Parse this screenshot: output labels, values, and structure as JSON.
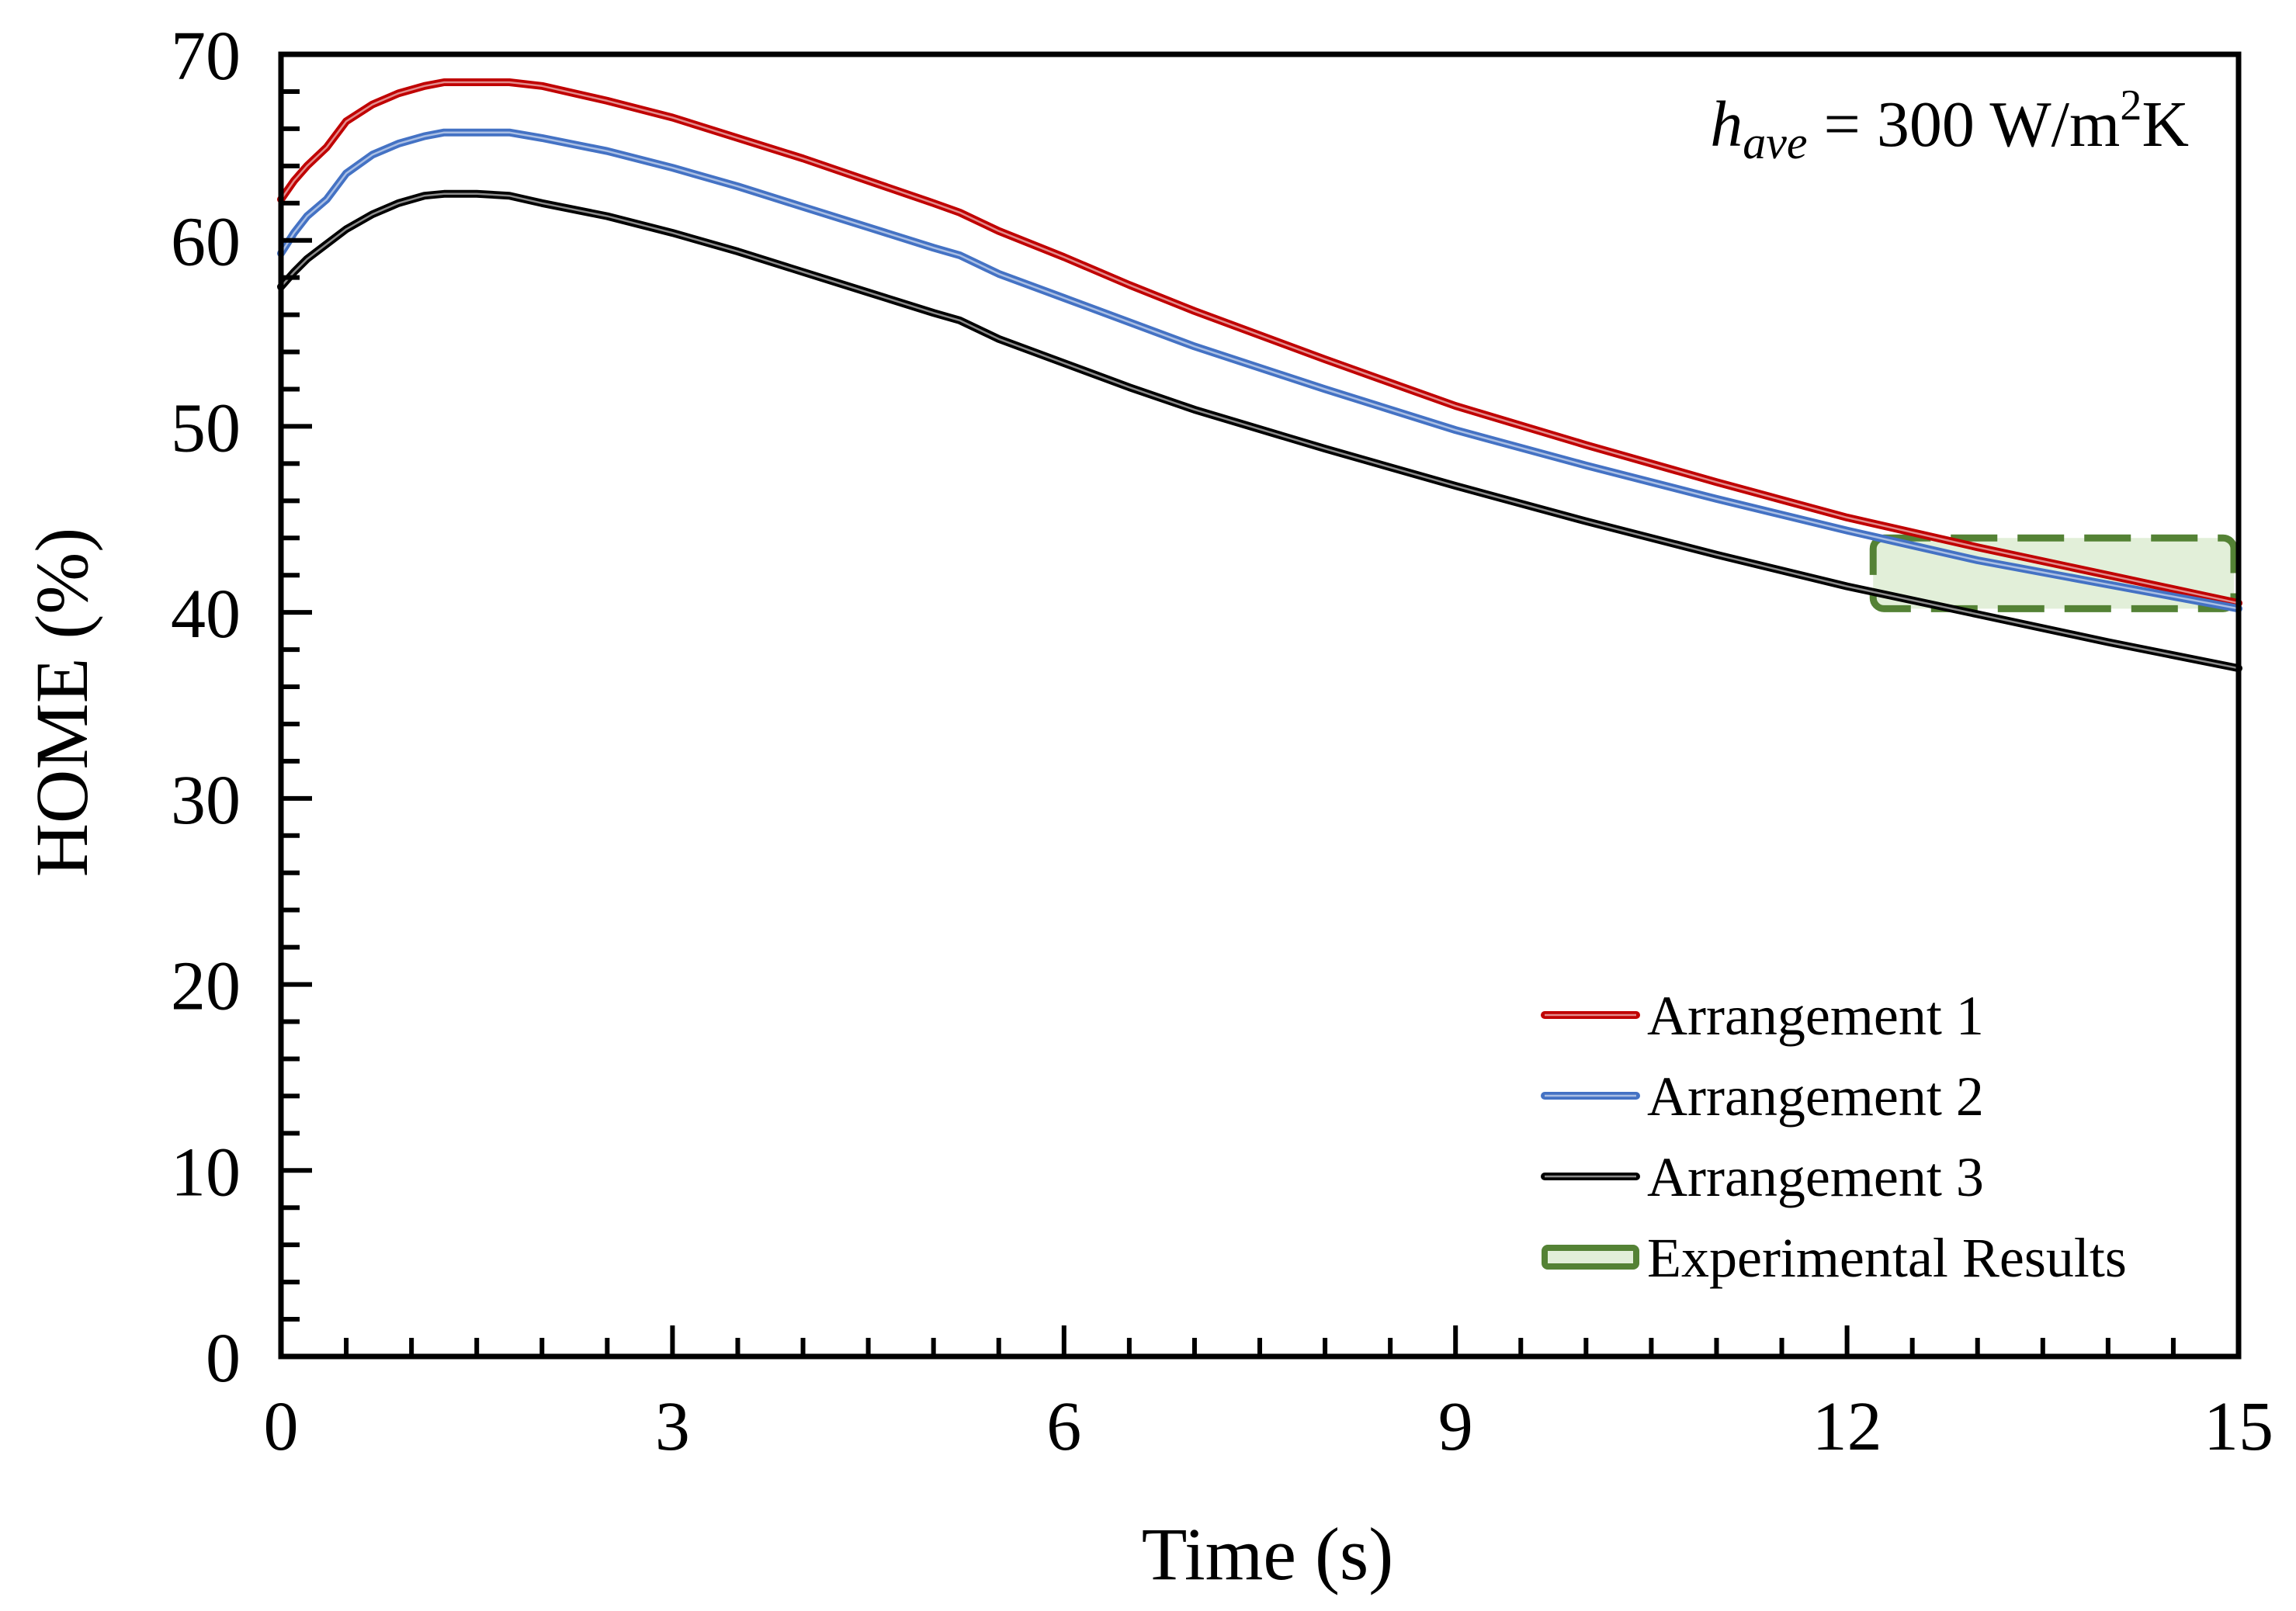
{
  "chart_data": {
    "type": "line",
    "title": "",
    "xlabel": "Time (s)",
    "ylabel": "HOME (%)",
    "xlim": [
      0,
      15
    ],
    "ylim": [
      0,
      70
    ],
    "x_ticks": [
      0,
      3,
      6,
      9,
      12,
      15
    ],
    "y_ticks": [
      0,
      10,
      20,
      30,
      40,
      50,
      60,
      70
    ],
    "x_minor_step": 0.5,
    "y_minor_step": 2,
    "grid": false,
    "legend_position": "bottom-right",
    "annotation": {
      "symbol": "h",
      "subscript": "ave",
      "text": " = 300 W/m",
      "superscript": "2",
      "suffix": "K"
    },
    "series": [
      {
        "name": "Arrangement 1",
        "color": "#c00000",
        "x": [
          0,
          0.1,
          0.2,
          0.35,
          0.5,
          0.7,
          0.9,
          1.1,
          1.25,
          1.5,
          1.75,
          2,
          2.5,
          3,
          3.5,
          4,
          4.5,
          5,
          5.2,
          5.5,
          6,
          6.5,
          7,
          8,
          9,
          10,
          11,
          12,
          13,
          14,
          15
        ],
        "values": [
          62.2,
          63.2,
          64.0,
          65.0,
          66.4,
          67.3,
          67.9,
          68.3,
          68.5,
          68.5,
          68.5,
          68.3,
          67.5,
          66.6,
          65.5,
          64.4,
          63.2,
          62.0,
          61.5,
          60.5,
          59.1,
          57.6,
          56.2,
          53.6,
          51.1,
          49.0,
          47.0,
          45.1,
          43.5,
          42.0,
          40.5
        ]
      },
      {
        "name": "Arrangement 2",
        "color": "#4472c4",
        "x": [
          0,
          0.1,
          0.2,
          0.35,
          0.5,
          0.7,
          0.9,
          1.1,
          1.25,
          1.5,
          1.75,
          2,
          2.5,
          3,
          3.5,
          4,
          4.5,
          5,
          5.2,
          5.5,
          6,
          6.5,
          7,
          8,
          9,
          10,
          11,
          12,
          13,
          14,
          15
        ],
        "values": [
          59.3,
          60.4,
          61.3,
          62.2,
          63.6,
          64.6,
          65.2,
          65.6,
          65.8,
          65.8,
          65.8,
          65.5,
          64.8,
          63.9,
          62.9,
          61.8,
          60.7,
          59.6,
          59.2,
          58.2,
          56.9,
          55.6,
          54.3,
          52.0,
          49.8,
          47.9,
          46.1,
          44.4,
          42.8,
          41.5,
          40.2
        ]
      },
      {
        "name": "Arrangement 3",
        "color": "#000000",
        "x": [
          0,
          0.1,
          0.2,
          0.35,
          0.5,
          0.7,
          0.9,
          1.1,
          1.25,
          1.5,
          1.75,
          2,
          2.5,
          3,
          3.5,
          4,
          4.5,
          5,
          5.2,
          5.5,
          6,
          6.5,
          7,
          8,
          9,
          10,
          11,
          12,
          13,
          14,
          15
        ],
        "values": [
          57.5,
          58.3,
          59.0,
          59.8,
          60.6,
          61.4,
          62.0,
          62.4,
          62.5,
          62.5,
          62.4,
          62.0,
          61.3,
          60.4,
          59.4,
          58.3,
          57.2,
          56.1,
          55.7,
          54.7,
          53.4,
          52.1,
          50.9,
          48.8,
          46.8,
          44.9,
          43.1,
          41.4,
          39.9,
          38.4,
          37.0
        ]
      }
    ],
    "experimental": {
      "name": "Experimental Results",
      "x_range": [
        12.2,
        15
      ],
      "y_range": [
        40.2,
        44.0
      ],
      "fill": "#e2efd9",
      "stroke": "#548235"
    }
  }
}
